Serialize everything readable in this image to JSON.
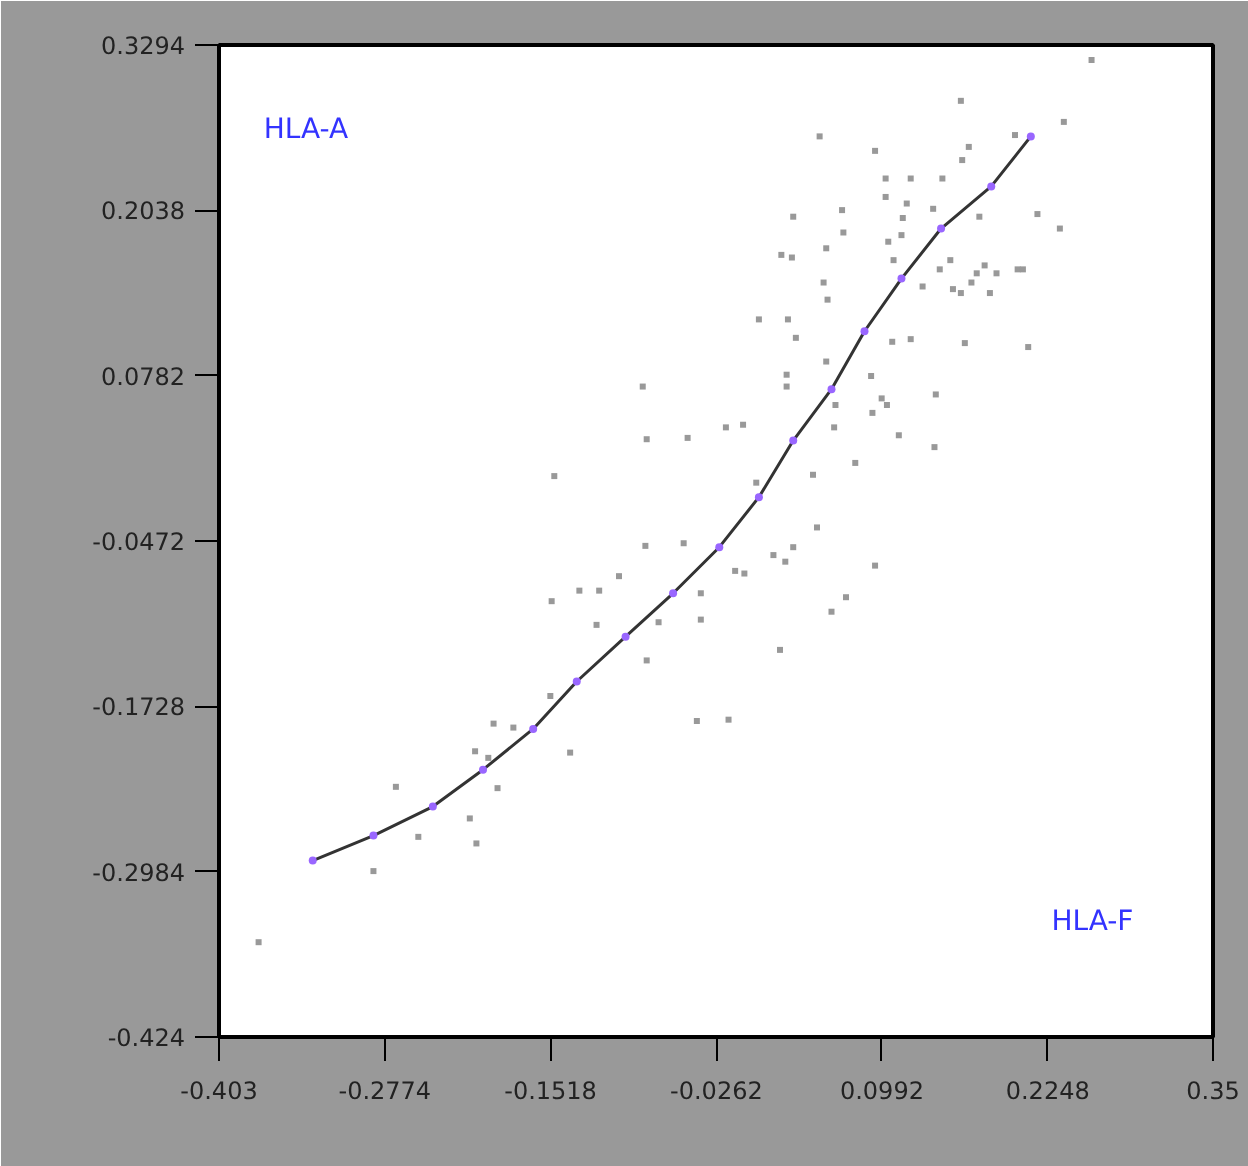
{
  "chart_data": {
    "type": "scatter",
    "annotations": [
      "HLA-A",
      "HLA-F"
    ],
    "xlim": [
      -0.403,
      0.35
    ],
    "ylim": [
      -0.424,
      0.3294
    ],
    "xticks": [
      -0.403,
      -0.2774,
      -0.1518,
      -0.0262,
      0.0992,
      0.2248,
      0.35
    ],
    "yticks": [
      -0.424,
      -0.2984,
      -0.1728,
      -0.0472,
      0.0782,
      0.2038,
      0.3294
    ],
    "grid": false,
    "series": [
      {
        "color": "#999999",
        "marker": "square",
        "x": [
          -0.373,
          -0.286,
          -0.269,
          -0.252,
          -0.213,
          -0.208,
          -0.209,
          -0.199,
          -0.192,
          -0.195,
          -0.18,
          -0.152,
          -0.137,
          -0.151,
          -0.149,
          -0.13,
          -0.115,
          -0.1,
          -0.117,
          -0.079,
          -0.08,
          -0.07,
          -0.051,
          -0.038,
          -0.038,
          -0.041,
          -0.017,
          -0.082,
          -0.079,
          -0.048,
          -0.019,
          -0.006,
          -0.012,
          -0.005,
          0.004,
          0.017,
          0.026,
          0.032,
          0.022,
          0.047,
          0.05,
          0.061,
          0.072,
          0.079,
          0.094,
          0.006,
          0.028,
          0.034,
          0.027,
          0.027,
          0.057,
          0.064,
          0.063,
          0.092,
          0.099,
          0.103,
          0.112,
          0.091,
          0.107,
          0.121,
          0.139,
          0.14,
          0.162,
          0.21,
          0.023,
          0.031,
          0.032,
          0.052,
          0.057,
          0.069,
          0.07,
          0.055,
          0.058,
          0.094,
          0.102,
          0.102,
          0.121,
          0.118,
          0.115,
          0.104,
          0.108,
          0.114,
          0.13,
          0.138,
          0.145,
          0.151,
          0.143,
          0.153,
          0.159,
          0.159,
          0.16,
          0.165,
          0.167,
          0.171,
          0.173,
          0.177,
          0.181,
          0.186,
          0.202,
          0.206,
          0.2,
          0.217,
          0.234,
          0.237,
          0.258
        ],
        "values": [
          -0.352,
          -0.298,
          -0.234,
          -0.272,
          -0.258,
          -0.277,
          -0.207,
          -0.212,
          -0.235,
          -0.186,
          -0.189,
          -0.165,
          -0.208,
          -0.093,
          0.002,
          -0.085,
          -0.085,
          -0.074,
          -0.111,
          -0.138,
          -0.051,
          -0.109,
          -0.049,
          -0.087,
          -0.107,
          -0.184,
          -0.183,
          0.07,
          0.03,
          0.031,
          0.039,
          0.041,
          -0.07,
          -0.072,
          -0.003,
          -0.058,
          -0.063,
          -0.052,
          -0.13,
          0.003,
          -0.037,
          -0.101,
          -0.09,
          0.012,
          -0.066,
          0.121,
          0.121,
          0.107,
          0.079,
          0.07,
          0.089,
          0.056,
          0.039,
          0.05,
          0.061,
          0.056,
          0.033,
          0.078,
          0.104,
          0.106,
          0.024,
          0.064,
          0.103,
          0.1,
          0.17,
          0.168,
          0.199,
          0.26,
          0.175,
          0.204,
          0.187,
          0.149,
          0.136,
          0.249,
          0.228,
          0.214,
          0.228,
          0.209,
          0.198,
          0.18,
          0.166,
          0.185,
          0.146,
          0.205,
          0.228,
          0.166,
          0.159,
          0.144,
          0.141,
          0.287,
          0.242,
          0.252,
          0.149,
          0.156,
          0.199,
          0.162,
          0.141,
          0.156,
          0.159,
          0.159,
          0.261,
          0.201,
          0.19,
          0.271,
          0.318
        ]
      },
      {
        "type": "line",
        "color": "#333333",
        "line_style": "solid",
        "x": [
          -0.332,
          -0.286,
          -0.241,
          -0.203,
          -0.165,
          -0.132,
          -0.095,
          -0.059,
          -0.024,
          0.006,
          0.032,
          0.061,
          0.086,
          0.114,
          0.144,
          0.182,
          0.212
        ],
        "values": [
          -0.29,
          -0.271,
          -0.249,
          -0.221,
          -0.19,
          -0.154,
          -0.12,
          -0.087,
          -0.052,
          -0.014,
          0.029,
          0.068,
          0.112,
          0.152,
          0.19,
          0.222,
          0.26
        ]
      },
      {
        "color": "#9966ff",
        "marker": "circle",
        "x": [
          -0.332,
          -0.286,
          -0.241,
          -0.203,
          -0.165,
          -0.132,
          -0.095,
          -0.059,
          -0.024,
          0.006,
          0.032,
          0.061,
          0.086,
          0.114,
          0.144,
          0.182,
          0.212
        ],
        "values": [
          -0.29,
          -0.271,
          -0.249,
          -0.221,
          -0.19,
          -0.154,
          -0.12,
          -0.087,
          -0.052,
          -0.014,
          0.029,
          0.068,
          0.112,
          0.152,
          0.19,
          0.222,
          0.26
        ]
      }
    ]
  }
}
